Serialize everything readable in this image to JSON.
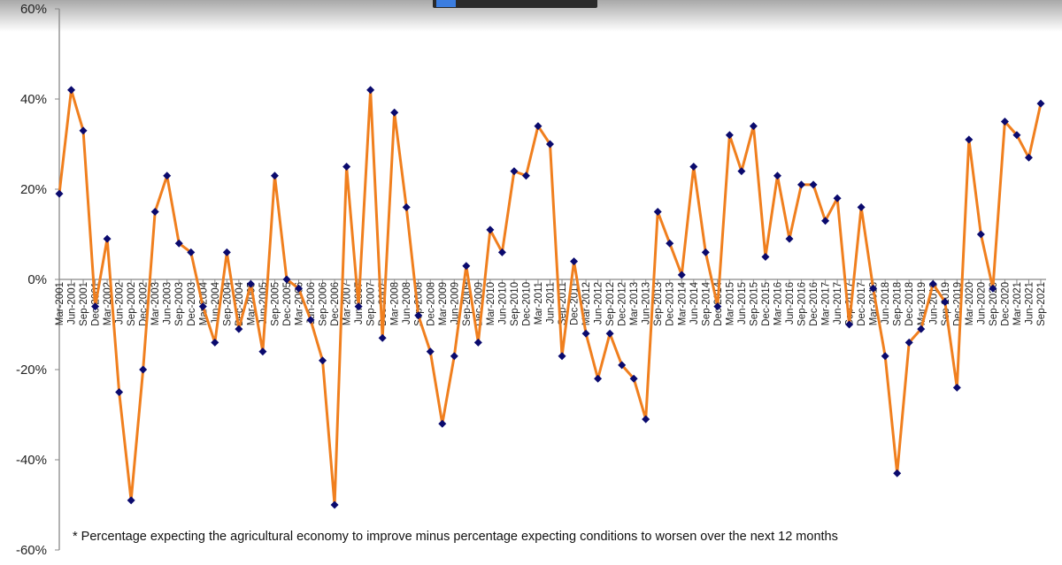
{
  "chart_data": {
    "type": "line",
    "title": "",
    "xlabel": "",
    "ylabel": "",
    "ylim": [
      -60,
      60
    ],
    "yticks": [
      "60%",
      "40%",
      "20%",
      "0%",
      "-20%",
      "-40%",
      "-60%"
    ],
    "ytick_values": [
      60,
      40,
      20,
      0,
      -20,
      -40,
      -60
    ],
    "grid": false,
    "line_color": "#f07f1e",
    "marker_color": "#0a0a6e",
    "marker": "diamond",
    "categories": [
      "Mar-2001",
      "Jun-2001",
      "Sep-2001",
      "Dec-2001",
      "Mar-2002",
      "Jun-2002",
      "Sep-2002",
      "Dec-2002",
      "Mar-2003",
      "Jun-2003",
      "Sep-2003",
      "Dec-2003",
      "Mar-2004",
      "Jun-2004",
      "Sep-2004",
      "Dec-2004",
      "Mar-2005",
      "Jun-2005",
      "Sep-2005",
      "Dec-2005",
      "Mar-2006",
      "Jun-2006",
      "Sep-2006",
      "Dec-2006",
      "Mar-2007",
      "Jun-2007",
      "Sep-2007",
      "Dec-2007",
      "Mar-2008",
      "Jun-2008",
      "Sep-2008",
      "Dec-2008",
      "Mar-2009",
      "Jun-2009",
      "Sep-2009",
      "Dec-2009",
      "Mar-2010",
      "Jun-2010",
      "Sep-2010",
      "Dec-2010",
      "Mar-2011",
      "Jun-2011",
      "Sep-2011",
      "Dec-2011",
      "Mar-2012",
      "Jun-2012",
      "Sep-2012",
      "Dec-2012",
      "Mar-2013",
      "Jun-2013",
      "Sep-2013",
      "Dec-2013",
      "Mar-2014",
      "Jun-2014",
      "Sep-2014",
      "Dec-2014",
      "Mar-2015",
      "Jun-2015",
      "Sep-2015",
      "Dec-2015",
      "Mar-2016",
      "Jun-2016",
      "Sep-2016",
      "Dec-2016",
      "Mar-2017",
      "Jun-2017",
      "Sep-2017",
      "Dec-2017",
      "Mar-2018",
      "Jun-2018",
      "Sep-2018",
      "Dec-2018",
      "Mar-2019",
      "Jun-2019",
      "Sep-2019",
      "Dec-2019",
      "Mar-2020",
      "Jun-2020",
      "Sep-2020",
      "Dec-2020",
      "Mar-2021",
      "Jun-2021",
      "Sep-2021"
    ],
    "values": [
      19,
      42,
      33,
      -6,
      9,
      -25,
      -49,
      -20,
      15,
      23,
      8,
      6,
      -6,
      -14,
      6,
      -11,
      -1,
      -16,
      23,
      0,
      -2,
      -9,
      -18,
      -50,
      25,
      -6,
      42,
      -13,
      37,
      16,
      -8,
      -16,
      -32,
      -17,
      3,
      -14,
      11,
      6,
      24,
      23,
      34,
      30,
      -17,
      4,
      -12,
      -22,
      -12,
      -19,
      -22,
      -31,
      15,
      8,
      1,
      25,
      6,
      -6,
      32,
      24,
      34,
      5,
      23,
      9,
      21,
      21,
      13,
      18,
      -10,
      16,
      -2,
      -17,
      -43,
      -14,
      -11,
      -1,
      -5,
      -24,
      31,
      10,
      -2,
      35,
      32,
      27,
      39
    ],
    "footnote": "* Percentage expecting the agricultural economy to improve minus percentage expecting conditions to worsen over the next 12 months"
  }
}
